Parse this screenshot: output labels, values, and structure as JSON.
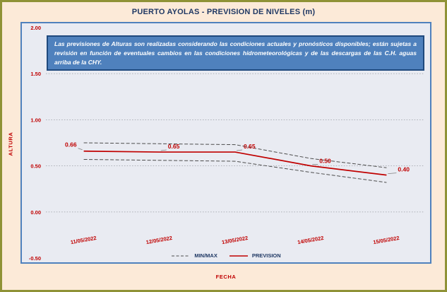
{
  "page": {
    "title": "PUERTO AYOLAS - PREVISION DE NIVELES (m)"
  },
  "disclaimer": {
    "text": "Las previsiones de Alturas son realizadas considerando las condiciones actuales y pronósticos disponibles;  están sujetas a revisión en función de eventuales cambios en las condiciones hidrometeorológicas y de las descargas de las C.H. aguas arriba de la CHY."
  },
  "chart_data": {
    "type": "line",
    "title": "PUERTO AYOLAS - PREVISION DE NIVELES (m)",
    "xlabel": "FECHA",
    "ylabel": "ALTURA",
    "categories": [
      "11/05/2022",
      "12/05/2022",
      "13/05/2022",
      "14/05/2022",
      "15/05/2022"
    ],
    "series": [
      {
        "name": "PREVISION",
        "values": [
          0.66,
          0.65,
          0.65,
          0.5,
          0.4
        ],
        "color": "#c00000",
        "dash": "solid"
      },
      {
        "name": "MAX",
        "values": [
          0.75,
          0.74,
          0.73,
          0.58,
          0.48
        ],
        "color": "#4d4d4d",
        "dash": "dashed"
      },
      {
        "name": "MIN",
        "values": [
          0.57,
          0.56,
          0.55,
          0.43,
          0.32
        ],
        "color": "#4d4d4d",
        "dash": "dashed"
      }
    ],
    "data_labels": [
      "0.66",
      "0.65",
      "0.65",
      "0.50",
      "0.40"
    ],
    "ylim": [
      -0.5,
      2.0
    ],
    "yticks": [
      2.0,
      1.5,
      1.0,
      0.5,
      0.0,
      -0.5
    ],
    "ytick_labels": [
      "2.00",
      "1.50",
      "1.00",
      "0.50",
      "0.00",
      "-0.50"
    ],
    "grid": "horizontal-dotted",
    "legend_position": "bottom",
    "legend": [
      {
        "label": "MIN/MAX",
        "style": "dashed",
        "color": "#4d4d4d"
      },
      {
        "label": "PREVISION",
        "style": "solid",
        "color": "#c00000"
      }
    ]
  },
  "colors": {
    "page_background": "#fcead8",
    "page_border": "#8f9236",
    "title_text": "#1f3864",
    "chart_background": "#e9ebf2",
    "chart_border": "#4f81bd",
    "axis_text": "#c00000",
    "gridline": "#a3a7ad",
    "disclaimer_background": "#4f81bd",
    "disclaimer_border": "#1f497d",
    "disclaimer_text": "#ffffff",
    "legend_text": "#1f3864"
  }
}
